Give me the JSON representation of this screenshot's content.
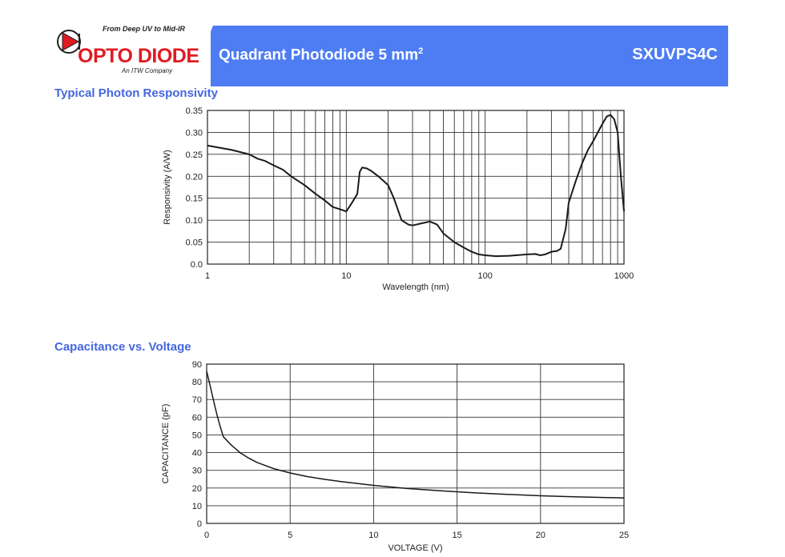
{
  "header": {
    "tagline": "From Deep UV to Mid-IR",
    "brand": "OPTO DIODE",
    "company": "An ITW Company",
    "product_title": "Quadrant Photodiode 5 mm",
    "product_title_sup": "2",
    "part_number": "SXUVPS4C",
    "accent_color": "#4d7cf3",
    "brand_color": "#e01b23",
    "logo_icon": "play-triangle-in-circle-icon"
  },
  "sections": {
    "responsivity_title": "Typical Photon Responsivity",
    "capacitance_title": "Capacitance vs. Voltage"
  },
  "chart_data": [
    {
      "type": "line",
      "xscale": "log",
      "xlabel": "Wavelength (nm)",
      "ylabel": "Responsivity (A/W)",
      "xlim": [
        1,
        1000
      ],
      "ylim": [
        0,
        0.35
      ],
      "xticks": [
        1,
        10,
        100,
        1000
      ],
      "xtick_labels": [
        "1",
        "10",
        "100",
        "1000"
      ],
      "yticks": [
        0,
        0.05,
        0.1,
        0.15,
        0.2,
        0.25,
        0.3,
        0.35
      ],
      "ytick_labels": [
        "0.0",
        "0.05",
        "0.10",
        "0.15",
        "0.20",
        "0.25",
        "0.30",
        "0.35"
      ],
      "grid": true,
      "series": [
        {
          "x": [
            1,
            1.5,
            2,
            2.3,
            2.6,
            3,
            3.5,
            4,
            5,
            6,
            7,
            8,
            9,
            10,
            11,
            12,
            12.5,
            13,
            14,
            15,
            17,
            20,
            22,
            25,
            28,
            30,
            35,
            40,
            45,
            50,
            60,
            70,
            80,
            90,
            100,
            120,
            150,
            180,
            200,
            230,
            250,
            270,
            300,
            330,
            350,
            380,
            400,
            450,
            500,
            550,
            600,
            700,
            750,
            800,
            850,
            900,
            950,
            1000
          ],
          "y": [
            0.27,
            0.26,
            0.25,
            0.24,
            0.235,
            0.225,
            0.215,
            0.2,
            0.18,
            0.16,
            0.145,
            0.13,
            0.125,
            0.12,
            0.14,
            0.16,
            0.21,
            0.22,
            0.218,
            0.213,
            0.2,
            0.18,
            0.15,
            0.1,
            0.09,
            0.088,
            0.093,
            0.097,
            0.09,
            0.07,
            0.05,
            0.038,
            0.028,
            0.022,
            0.02,
            0.018,
            0.019,
            0.021,
            0.022,
            0.023,
            0.02,
            0.022,
            0.028,
            0.03,
            0.035,
            0.08,
            0.14,
            0.19,
            0.23,
            0.26,
            0.28,
            0.32,
            0.336,
            0.34,
            0.33,
            0.3,
            0.2,
            0.12
          ]
        }
      ]
    },
    {
      "type": "line",
      "xlabel": "VOLTAGE (V)",
      "ylabel": "CAPACITANCE (pF)",
      "xlim": [
        0,
        25
      ],
      "ylim": [
        0,
        90
      ],
      "xticks": [
        0,
        5,
        10,
        15,
        20,
        25
      ],
      "xtick_labels": [
        "0",
        "5",
        "10",
        "15",
        "20",
        "25"
      ],
      "yticks": [
        0,
        10,
        20,
        30,
        40,
        50,
        60,
        70,
        80,
        90
      ],
      "ytick_labels": [
        "0",
        "10",
        "20",
        "30",
        "40",
        "50",
        "60",
        "70",
        "80",
        "90"
      ],
      "grid": true,
      "series": [
        {
          "x": [
            0,
            0.2,
            0.4,
            0.6,
            0.8,
            1.0,
            1.5,
            2,
            2.5,
            3,
            4,
            5,
            6,
            7,
            8,
            10,
            12,
            14,
            16,
            18,
            20,
            22,
            24,
            25
          ],
          "y": [
            86,
            78,
            70,
            62,
            55,
            49,
            44,
            40,
            37,
            34.5,
            31,
            28.5,
            26.5,
            25,
            23.7,
            21.5,
            19.7,
            18.4,
            17.3,
            16.4,
            15.6,
            15,
            14.6,
            14.4
          ]
        }
      ]
    }
  ]
}
